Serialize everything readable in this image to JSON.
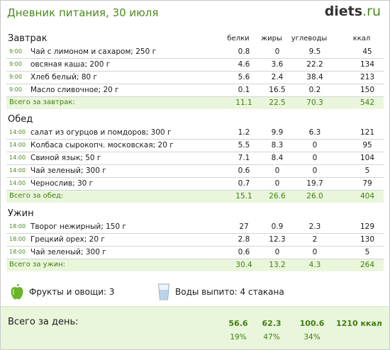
{
  "header": {
    "title": "Дневник питания, 30 июля",
    "logo_main": "diets",
    "logo_suffix": ".ru"
  },
  "columns": {
    "protein": "белки",
    "fat": "жиры",
    "carbs": "углеводы",
    "kcal": "ккал"
  },
  "meals": [
    {
      "title": "Завтрак",
      "items": [
        {
          "time": "9:00",
          "name": "Чай с лимоном и сахаром; 250 г",
          "protein": "0.8",
          "fat": "0",
          "carbs": "9.5",
          "kcal": "45"
        },
        {
          "time": "9:00",
          "name": "овсяная каша; 200 г",
          "protein": "4.6",
          "fat": "3.6",
          "carbs": "22.2",
          "kcal": "134"
        },
        {
          "time": "9:00",
          "name": "Хлеб белый; 80 г",
          "protein": "5.6",
          "fat": "2.4",
          "carbs": "38.4",
          "kcal": "213"
        },
        {
          "time": "9:00",
          "name": "Масло сливочное; 20 г",
          "protein": "0.1",
          "fat": "16.5",
          "carbs": "0.2",
          "kcal": "150"
        }
      ],
      "total": {
        "label": "Всего за завтрак:",
        "protein": "11.1",
        "fat": "22.5",
        "carbs": "70.3",
        "kcal": "542"
      }
    },
    {
      "title": "Обед",
      "items": [
        {
          "time": "14:00",
          "name": "салат из огурцов и помдоров; 300 г",
          "protein": "1.2",
          "fat": "9.9",
          "carbs": "6.3",
          "kcal": "121"
        },
        {
          "time": "14:00",
          "name": "Колбаса сырокопч. московская; 20 г",
          "protein": "5.5",
          "fat": "8.3",
          "carbs": "0",
          "kcal": "95"
        },
        {
          "time": "14:00",
          "name": "Свиной язык; 50 г",
          "protein": "7.1",
          "fat": "8.4",
          "carbs": "0",
          "kcal": "104"
        },
        {
          "time": "14:00",
          "name": "Чай зеленый; 300 г",
          "protein": "0.6",
          "fat": "0",
          "carbs": "0",
          "kcal": "5"
        },
        {
          "time": "14:00",
          "name": "Чернослив; 30 г",
          "protein": "0.7",
          "fat": "0",
          "carbs": "19.7",
          "kcal": "79"
        }
      ],
      "total": {
        "label": "Всего за обед:",
        "protein": "15.1",
        "fat": "26.6",
        "carbs": "26.0",
        "kcal": "404"
      }
    },
    {
      "title": "Ужин",
      "items": [
        {
          "time": "18:00",
          "name": "Творог нежирный; 150 г",
          "protein": "27",
          "fat": "0.9",
          "carbs": "2.3",
          "kcal": "129"
        },
        {
          "time": "18:00",
          "name": "Грецкий орех; 20 г",
          "protein": "2.8",
          "fat": "12.3",
          "carbs": "2",
          "kcal": "130"
        },
        {
          "time": "18:00",
          "name": "Чай зеленый; 300 г",
          "protein": "0.6",
          "fat": "0",
          "carbs": "0",
          "kcal": "5"
        }
      ],
      "total": {
        "label": "Всего за ужин:",
        "protein": "30.4",
        "fat": "13.2",
        "carbs": "4.3",
        "kcal": "264"
      }
    }
  ],
  "extras": {
    "fruits": "Фрукты и овощи: 3",
    "water": "Воды выпито: 4 стакана"
  },
  "day_total": {
    "label": "Всего за день:",
    "protein": "56.6",
    "fat": "62.3",
    "carbs": "100.6",
    "kcal": "1210 ккал",
    "protein_pct": "19%",
    "fat_pct": "47%",
    "carbs_pct": "34%"
  },
  "colors": {
    "accent_green": "#4a8a1e",
    "total_bg": "#eaf6dc"
  },
  "icons": {
    "fruits": "green-apple-icon",
    "water": "water-glass-icon"
  }
}
